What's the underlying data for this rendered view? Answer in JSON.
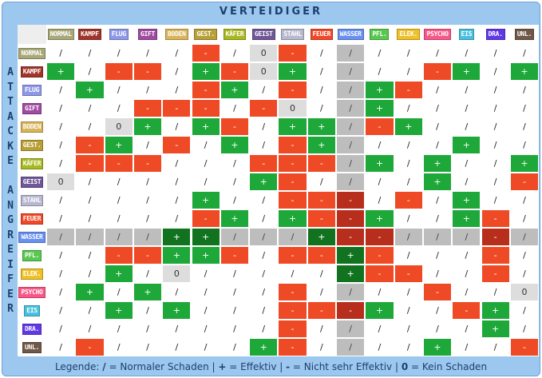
{
  "title": "VERTEIDIGER",
  "attacker_label": "ATTACKE ANGREIFER",
  "legend": {
    "prefix": "Legende:",
    "items": [
      {
        "sym": "/",
        "text": " = Normaler Schaden"
      },
      {
        "sym": "+",
        "text": " = Effektiv"
      },
      {
        "sym": "-",
        "text": " = Nicht sehr Effektiv"
      },
      {
        "sym": "0",
        "text": " = Kein Schaden"
      }
    ],
    "separator": " | "
  },
  "types": [
    {
      "label": "NORMAL",
      "color": "#a8a878"
    },
    {
      "label": "KAMPF",
      "color": "#a0342a"
    },
    {
      "label": "FLUG",
      "color": "#8f98e8"
    },
    {
      "label": "GIFT",
      "color": "#a04aa0"
    },
    {
      "label": "BODEN",
      "color": "#d8b45a"
    },
    {
      "label": "GEST.",
      "color": "#b8a038"
    },
    {
      "label": "KÄFER",
      "color": "#a8b820"
    },
    {
      "label": "GEIST",
      "color": "#705898"
    },
    {
      "label": "STAHL",
      "color": "#b8b8d0"
    },
    {
      "label": "FEUER",
      "color": "#f04828"
    },
    {
      "label": "WASSER",
      "color": "#6890f0"
    },
    {
      "label": "PFL.",
      "color": "#58c850"
    },
    {
      "label": "ELEK.",
      "color": "#f0c028"
    },
    {
      "label": "PSYCHO",
      "color": "#f85888"
    },
    {
      "label": "EIS",
      "color": "#48c0e0"
    },
    {
      "label": "DRA.",
      "color": "#6038e8"
    },
    {
      "label": "UNL.",
      "color": "#705848"
    }
  ],
  "water_index": 10,
  "matrix": [
    [
      "/",
      "/",
      "/",
      "/",
      "/",
      "-",
      "/",
      "0",
      "-",
      "/",
      "/",
      "/",
      "/",
      "/",
      "/",
      "/",
      "/"
    ],
    [
      "+",
      "/",
      "-",
      "-",
      "/",
      "+",
      "-",
      "0",
      "+",
      "/",
      "/",
      "/",
      "/",
      "-",
      "+",
      "/",
      "+"
    ],
    [
      "/",
      "+",
      "/",
      "/",
      "/",
      "-",
      "+",
      "/",
      "-",
      "/",
      "/",
      "+",
      "-",
      "/",
      "/",
      "/",
      "/"
    ],
    [
      "/",
      "/",
      "/",
      "-",
      "-",
      "-",
      "/",
      "-",
      "0",
      "/",
      "/",
      "+",
      "/",
      "/",
      "/",
      "/",
      "/"
    ],
    [
      "/",
      "/",
      "0",
      "+",
      "/",
      "+",
      "-",
      "/",
      "+",
      "+",
      "/",
      "-",
      "+",
      "/",
      "/",
      "/",
      "/"
    ],
    [
      "/",
      "-",
      "+",
      "/",
      "-",
      "/",
      "+",
      "/",
      "-",
      "+",
      "/",
      "/",
      "/",
      "/",
      "+",
      "/",
      "/"
    ],
    [
      "/",
      "-",
      "-",
      "-",
      "/",
      "/",
      "/",
      "-",
      "-",
      "-",
      "/",
      "+",
      "/",
      "+",
      "/",
      "/",
      "+"
    ],
    [
      "0",
      "/",
      "/",
      "/",
      "/",
      "/",
      "/",
      "+",
      "-",
      "/",
      "/",
      "/",
      "/",
      "+",
      "/",
      "/",
      "-"
    ],
    [
      "/",
      "/",
      "/",
      "/",
      "/",
      "+",
      "/",
      "/",
      "-",
      "-",
      "-",
      "/",
      "-",
      "/",
      "+",
      "/",
      "/"
    ],
    [
      "/",
      "/",
      "/",
      "/",
      "/",
      "-",
      "+",
      "/",
      "+",
      "-",
      "-",
      "+",
      "/",
      "/",
      "+",
      "-",
      "/"
    ],
    [
      "/",
      "/",
      "/",
      "/",
      "+",
      "+",
      "/",
      "/",
      "/",
      "+",
      "-",
      "-",
      "/",
      "/",
      "/",
      "-",
      "/"
    ],
    [
      "/",
      "/",
      "-",
      "-",
      "+",
      "+",
      "-",
      "/",
      "-",
      "-",
      "+",
      "-",
      "/",
      "/",
      "/",
      "-",
      "/"
    ],
    [
      "/",
      "/",
      "+",
      "/",
      "0",
      "/",
      "/",
      "/",
      "/",
      "/",
      "+",
      "-",
      "-",
      "/",
      "/",
      "-",
      "/"
    ],
    [
      "/",
      "+",
      "/",
      "+",
      "/",
      "/",
      "/",
      "/",
      "-",
      "/",
      "/",
      "/",
      "/",
      "-",
      "/",
      "/",
      "0"
    ],
    [
      "/",
      "/",
      "+",
      "/",
      "+",
      "/",
      "/",
      "/",
      "-",
      "-",
      "-",
      "+",
      "/",
      "/",
      "-",
      "+",
      "/"
    ],
    [
      "/",
      "/",
      "/",
      "/",
      "/",
      "/",
      "/",
      "/",
      "-",
      "/",
      "/",
      "/",
      "/",
      "/",
      "/",
      "+",
      "/"
    ],
    [
      "/",
      "-",
      "/",
      "/",
      "/",
      "/",
      "/",
      "+",
      "-",
      "/",
      "/",
      "/",
      "/",
      "+",
      "/",
      "/",
      "-"
    ]
  ]
}
